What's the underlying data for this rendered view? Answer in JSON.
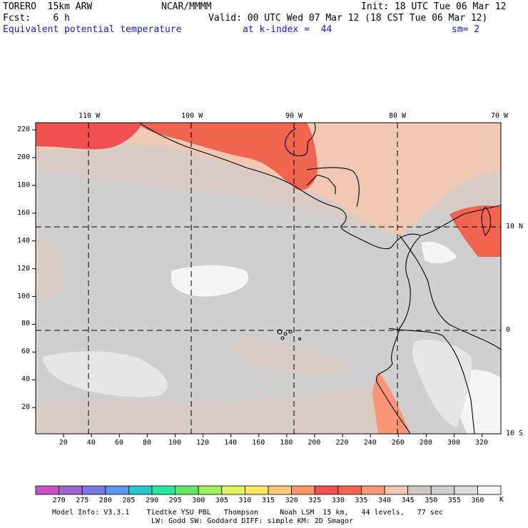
{
  "header": {
    "model": "TORERO  15km ARW",
    "center": "NCAR/MMMM",
    "init": "Init: 18 UTC Tue 06 Mar 12",
    "fcst": "Fcst:    6 h",
    "valid": "Valid: 00 UTC Wed 07 Mar 12 (18 CST Tue 06 Mar 12)",
    "field": "Equivalent potential temperature",
    "level": "at k-index =  44",
    "smooth": "sm= 2"
  },
  "map": {
    "lon_labels": [
      "110 W",
      "100 W",
      "90 W",
      "80 W",
      "70 W"
    ],
    "lat_labels": [
      "10 N",
      "0",
      "10 S"
    ],
    "y_ticks": [
      "220",
      "200",
      "180",
      "160",
      "140",
      "120",
      "100",
      "80",
      "60",
      "40",
      "20"
    ],
    "x_ticks": [
      "20",
      "40",
      "60",
      "80",
      "100",
      "120",
      "140",
      "160",
      "180",
      "200",
      "220",
      "240",
      "260",
      "280",
      "300",
      "320"
    ]
  },
  "colorbar": {
    "labels": [
      "270",
      "275",
      "280",
      "285",
      "290",
      "295",
      "300",
      "305",
      "310",
      "315",
      "320",
      "325",
      "330",
      "335",
      "340",
      "345",
      "350",
      "355",
      "360"
    ],
    "unit": "K",
    "colors": [
      "#c850c8",
      "#a064d2",
      "#7878e6",
      "#5a96f0",
      "#28c8c8",
      "#28e6a0",
      "#64e664",
      "#a0f064",
      "#e6f064",
      "#fae664",
      "#fac878",
      "#fa9664",
      "#f05050",
      "#f06450",
      "#fa9678",
      "#f0c8b4",
      "#d2c8c0",
      "#cfcfcf",
      "#dcdcdc",
      "#f5f5f5"
    ]
  },
  "footer": {
    "line1": "Model Info: V3.3.1    Tiedtke YSU PBL   Thompson     Noah LSM  15 km,   44 levels,   77 sec",
    "line2": "LW: Godd SW: Goddard DIFF: simple KM: 2D Smagor"
  },
  "field_colors": {
    "bg": "#cfcfcf",
    "warm1": "#f0c8b4",
    "warm2": "#fa9678",
    "warm3": "#f06450",
    "hot": "#f05050",
    "white": "#f5f5f5",
    "light": "#e6e6e6",
    "beige": "#d8ccc4"
  }
}
